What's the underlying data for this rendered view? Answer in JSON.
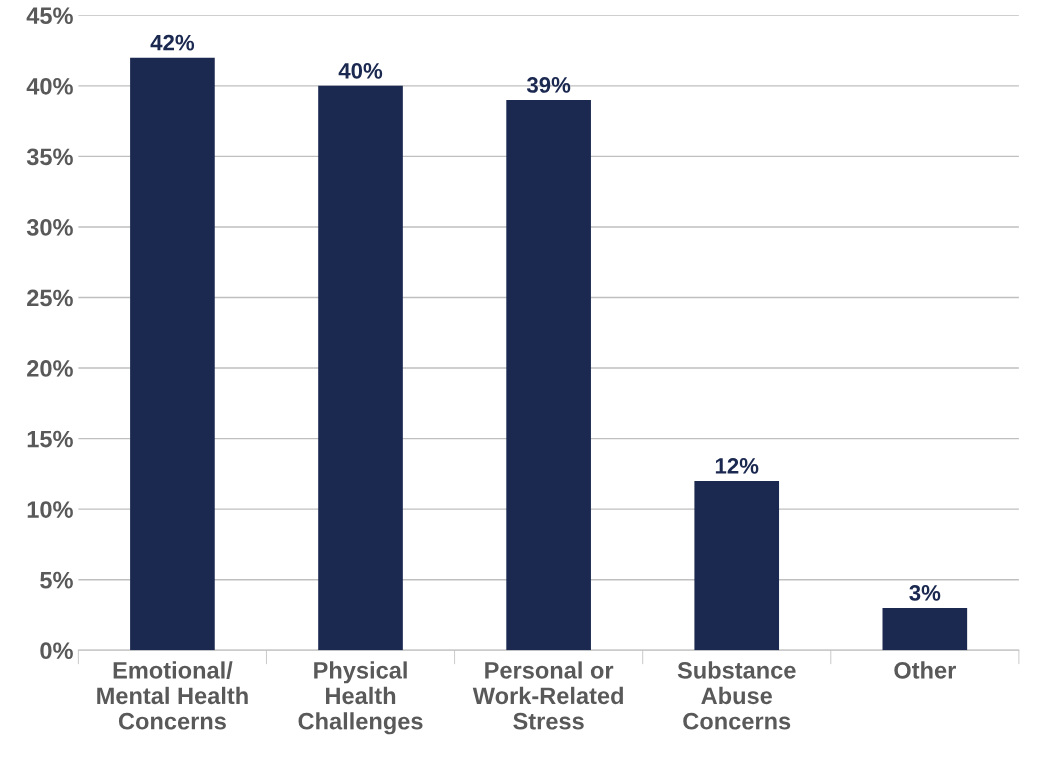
{
  "chart_data": {
    "type": "bar",
    "categories": [
      "Emotional/\nMental Health\nConcerns",
      "Physical\nHealth\nChallenges",
      "Personal or\nWork-Related\nStress",
      "Substance\nAbuse\nConcerns",
      "Other"
    ],
    "values": [
      42,
      40,
      39,
      12,
      3
    ],
    "value_labels": [
      "42%",
      "40%",
      "39%",
      "12%",
      "3%"
    ],
    "color": "#1b2951",
    "ylim": [
      0,
      45
    ],
    "yticks": [
      {
        "value": 0,
        "label": "0%"
      },
      {
        "value": 5,
        "label": "5%"
      },
      {
        "value": 10,
        "label": "10%"
      },
      {
        "value": 15,
        "label": "15%"
      },
      {
        "value": 20,
        "label": "20%"
      },
      {
        "value": 25,
        "label": "25%"
      },
      {
        "value": 30,
        "label": "30%"
      },
      {
        "value": 35,
        "label": "35%"
      },
      {
        "value": 40,
        "label": "40%"
      },
      {
        "value": 45,
        "label": "45%"
      }
    ],
    "grid": "y"
  }
}
